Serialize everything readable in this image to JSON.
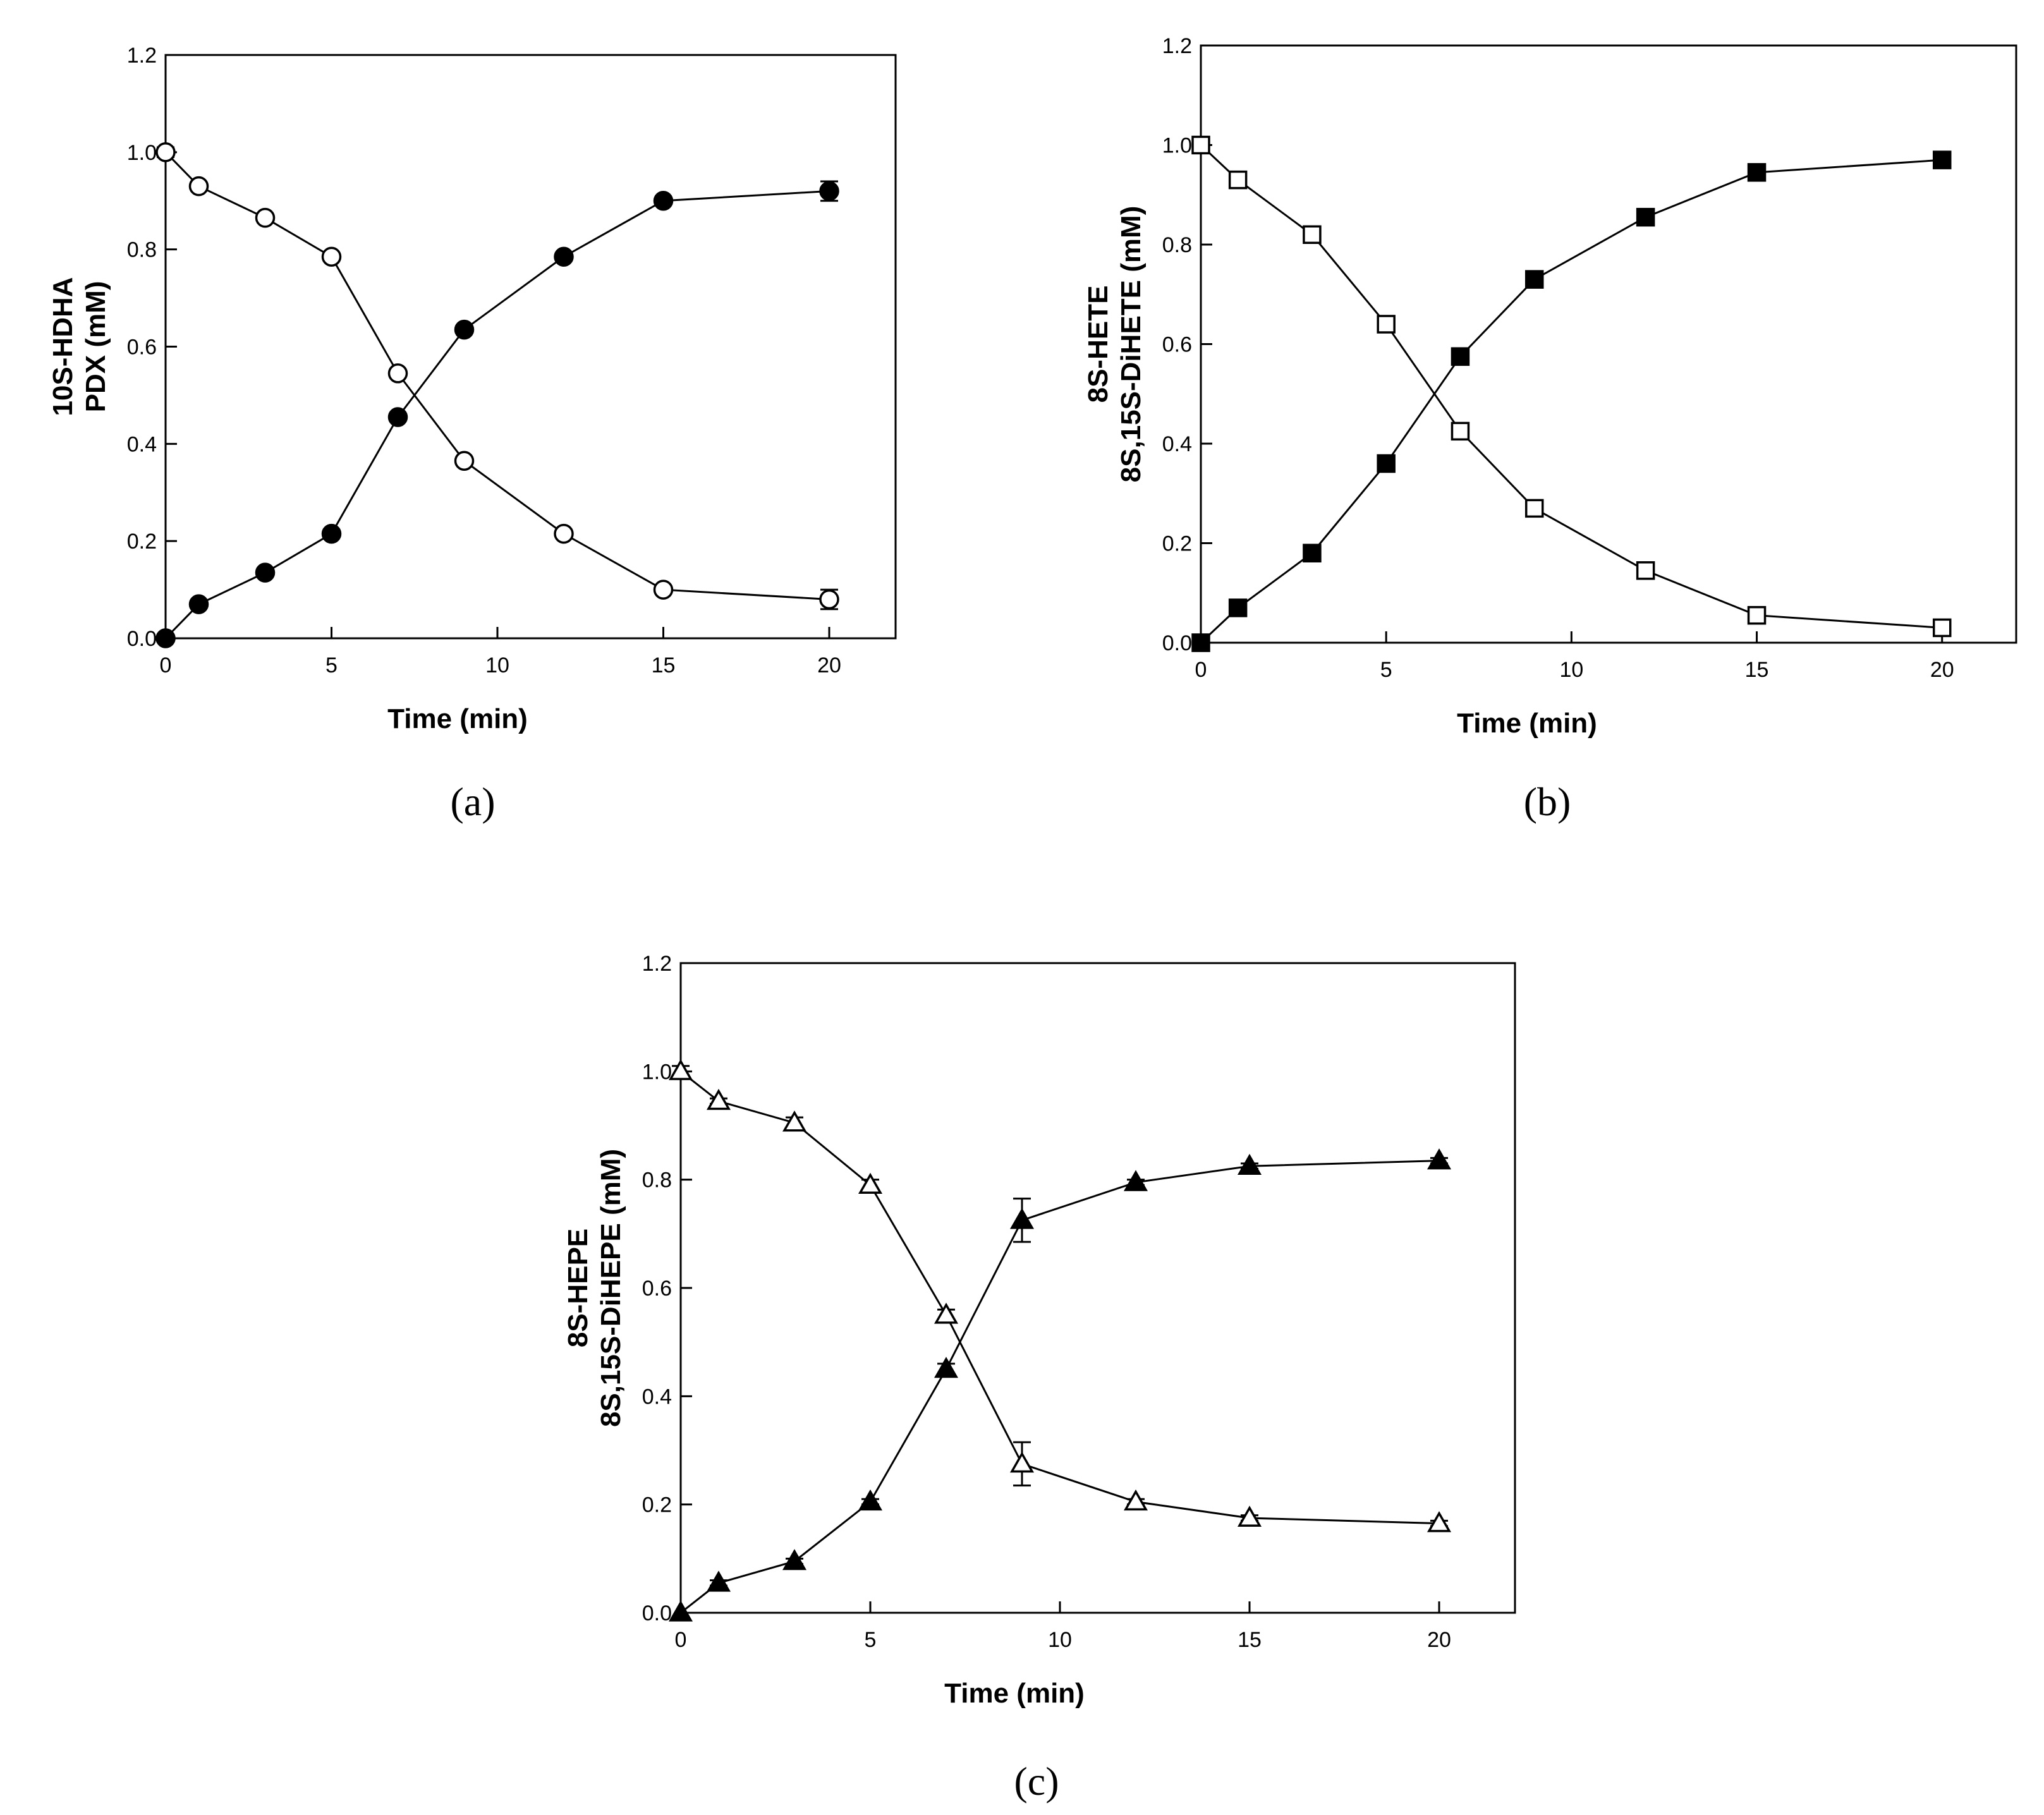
{
  "figure": {
    "panel_labels": [
      "(a)",
      "(b)",
      "(c)"
    ]
  },
  "chart_data": [
    {
      "type": "line",
      "panel": "(a)",
      "xlabel": "Time (min)",
      "ylabel": [
        "10S-HDHA",
        "PDX (mM)"
      ],
      "xlim": [
        0,
        22
      ],
      "ylim": [
        0,
        1.2
      ],
      "xticks": [
        0,
        5,
        10,
        15,
        20
      ],
      "yticks": [
        0.0,
        0.2,
        0.4,
        0.6,
        0.8,
        1.0,
        1.2
      ],
      "x": [
        0,
        1,
        3,
        5,
        7,
        9,
        12,
        15,
        20
      ],
      "series": [
        {
          "name": "10S-HDHA",
          "marker": "circle",
          "filled": false,
          "values": [
            1.0,
            0.93,
            0.865,
            0.785,
            0.545,
            0.365,
            0.215,
            0.1,
            0.08
          ],
          "errors": [
            0.01,
            0.005,
            0.005,
            0.005,
            0.005,
            0.005,
            0.005,
            0.005,
            0.02
          ]
        },
        {
          "name": "PDX",
          "marker": "circle",
          "filled": true,
          "values": [
            0.0,
            0.07,
            0.135,
            0.215,
            0.455,
            0.635,
            0.785,
            0.9,
            0.92
          ],
          "errors": [
            0.0,
            0.005,
            0.005,
            0.005,
            0.005,
            0.005,
            0.005,
            0.005,
            0.02
          ]
        }
      ]
    },
    {
      "type": "line",
      "panel": "(b)",
      "xlabel": "Time (min)",
      "ylabel": [
        "8S-HETE",
        "8S,15S-DiHETE (mM)"
      ],
      "xlim": [
        0,
        22
      ],
      "ylim": [
        0,
        1.2
      ],
      "xticks": [
        0,
        5,
        10,
        15,
        20
      ],
      "yticks": [
        0.0,
        0.2,
        0.4,
        0.6,
        0.8,
        1.0,
        1.2
      ],
      "x": [
        0,
        1,
        3,
        5,
        7,
        9,
        12,
        15,
        20
      ],
      "series": [
        {
          "name": "8S-HETE",
          "marker": "square",
          "filled": false,
          "values": [
            1.0,
            0.93,
            0.82,
            0.64,
            0.425,
            0.27,
            0.145,
            0.055,
            0.03
          ],
          "errors": [
            0.0,
            0.01,
            0.01,
            0.01,
            0.01,
            0.01,
            0.005,
            0.005,
            0.005
          ]
        },
        {
          "name": "8S,15S-DiHETE",
          "marker": "square",
          "filled": true,
          "values": [
            0.0,
            0.07,
            0.18,
            0.36,
            0.575,
            0.73,
            0.855,
            0.945,
            0.97
          ],
          "errors": [
            0.0,
            0.01,
            0.01,
            0.01,
            0.01,
            0.01,
            0.01,
            0.01,
            0.005
          ]
        }
      ]
    },
    {
      "type": "line",
      "panel": "(c)",
      "xlabel": "Time (min)",
      "ylabel": [
        "8S-HEPE",
        "8S,15S-DiHEPE (mM)"
      ],
      "xlim": [
        0,
        22
      ],
      "ylim": [
        0,
        1.2
      ],
      "xticks": [
        0,
        5,
        10,
        15,
        20
      ],
      "yticks": [
        0.0,
        0.2,
        0.4,
        0.6,
        0.8,
        1.0,
        1.2
      ],
      "x": [
        0,
        1,
        3,
        5,
        7,
        9,
        12,
        15,
        20
      ],
      "series": [
        {
          "name": "8S-HEPE",
          "marker": "triangle",
          "filled": false,
          "values": [
            1.0,
            0.945,
            0.905,
            0.79,
            0.55,
            0.275,
            0.205,
            0.175,
            0.165
          ],
          "errors": [
            0.01,
            0.005,
            0.01,
            0.01,
            0.01,
            0.04,
            0.005,
            0.005,
            0.005
          ]
        },
        {
          "name": "8S,15S-DiHEPE",
          "marker": "triangle",
          "filled": true,
          "values": [
            0.0,
            0.055,
            0.095,
            0.205,
            0.45,
            0.725,
            0.795,
            0.825,
            0.835
          ],
          "errors": [
            0.0,
            0.005,
            0.005,
            0.005,
            0.01,
            0.04,
            0.005,
            0.005,
            0.005
          ]
        }
      ]
    }
  ]
}
